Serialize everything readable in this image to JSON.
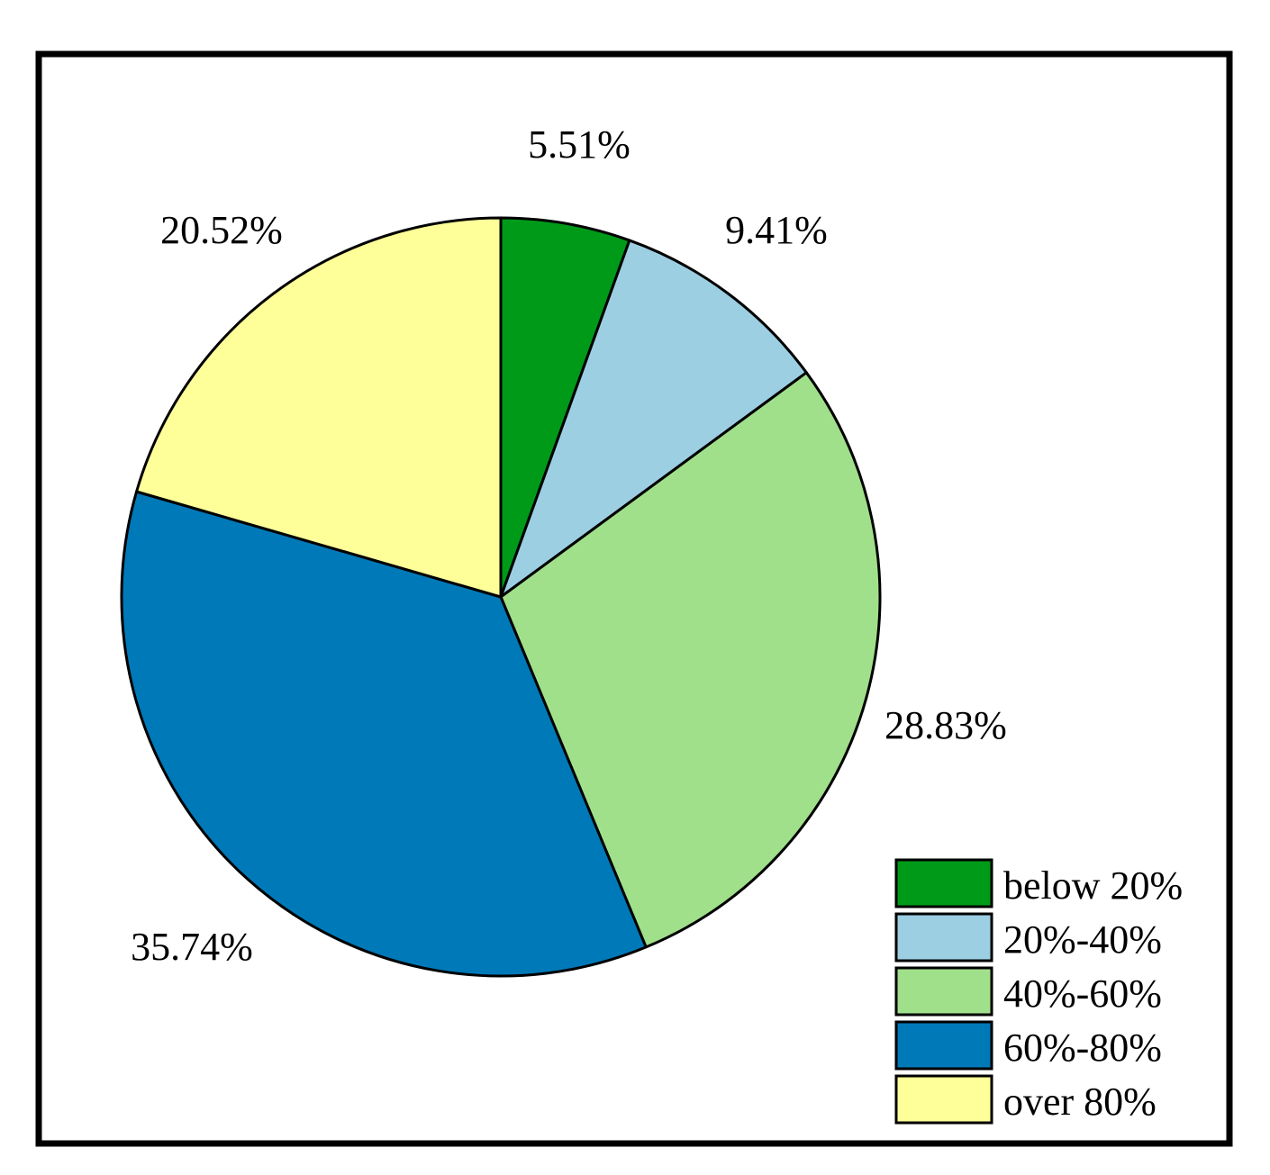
{
  "chart_data": {
    "type": "pie",
    "title": "",
    "start_angle": "12 o'clock",
    "direction": "clockwise",
    "legend_position": "bottom-right",
    "slices": [
      {
        "label": "below 20%",
        "value": 5.51,
        "value_label": "5.51%",
        "color": "#009A19"
      },
      {
        "label": "20%-40%",
        "value": 9.41,
        "value_label": "9.41%",
        "color": "#9DCFE3"
      },
      {
        "label": "40%-60%",
        "value": 28.83,
        "value_label": "28.83%",
        "color": "#A1E08B"
      },
      {
        "label": "60%-80%",
        "value": 35.74,
        "value_label": "35.74%",
        "color": "#0079B8"
      },
      {
        "label": "over 80%",
        "value": 20.52,
        "value_label": "20.52%",
        "color": "#FFFF99"
      }
    ]
  }
}
